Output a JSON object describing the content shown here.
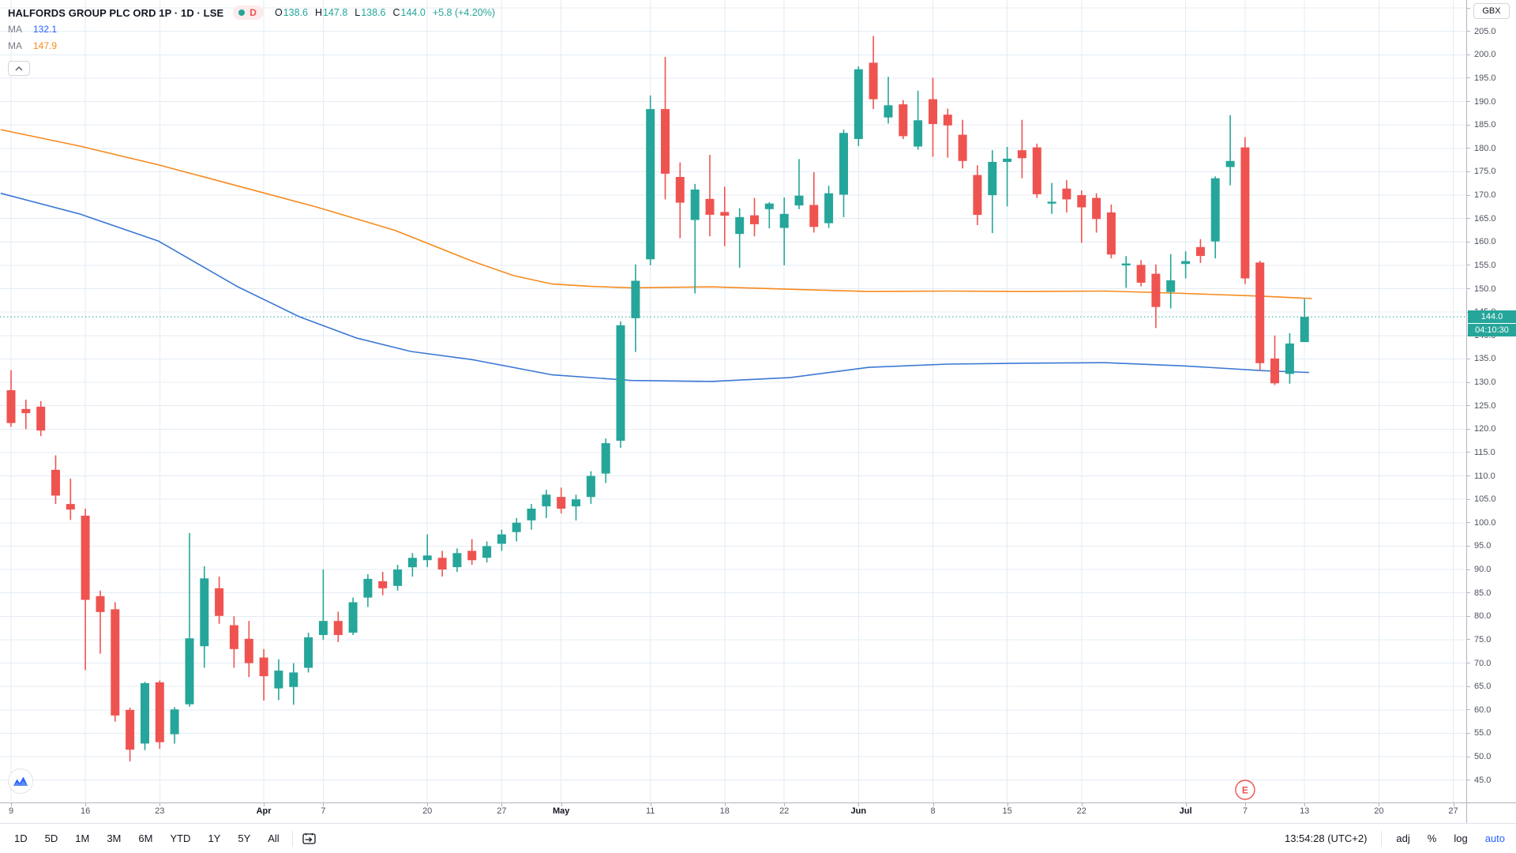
{
  "header": {
    "title": "HALFORDS GROUP PLC ORD 1P · 1D · LSE",
    "interval_badge": "D",
    "ohlc": {
      "o_label": "O",
      "o": "138.6",
      "h_label": "H",
      "h": "147.8",
      "l_label": "L",
      "l": "138.6",
      "c_label": "C",
      "c": "144.0",
      "change": "+5.8 (+4.20%)"
    },
    "ma_rows": [
      {
        "label": "MA",
        "value": "132.1",
        "color": "#2962ff"
      },
      {
        "label": "MA",
        "value": "147.9",
        "color": "#f7891d"
      }
    ]
  },
  "price_axis": {
    "currency_button": "GBX",
    "min": 45,
    "max": 210,
    "step": 5,
    "current_price": "144.0",
    "countdown": "04:10:30"
  },
  "toolbar": {
    "ranges": [
      "1D",
      "5D",
      "1M",
      "3M",
      "6M",
      "YTD",
      "1Y",
      "5Y",
      "All"
    ],
    "clock": "13:54:28 (UTC+2)",
    "adj": "adj",
    "percent": "%",
    "log": "log",
    "auto": "auto"
  },
  "chart_data": {
    "type": "candlestick",
    "symbol": "HALFORDS GROUP PLC ORD 1P",
    "interval": "1D",
    "exchange": "LSE",
    "colors": {
      "up": "#26a69a",
      "down": "#ef5350",
      "grid": "#e4ecf4",
      "price_line": "#26a69a"
    },
    "price_axis": {
      "min": 45,
      "max": 210,
      "step": 5,
      "current_price": 144.0
    },
    "time_labels": [
      {
        "t": "9",
        "i": 0,
        "m": false
      },
      {
        "t": "16",
        "i": 5,
        "m": false
      },
      {
        "t": "23",
        "i": 10,
        "m": false
      },
      {
        "t": "Apr",
        "i": 17,
        "m": true
      },
      {
        "t": "7",
        "i": 21,
        "m": false
      },
      {
        "t": "20",
        "i": 28,
        "m": false
      },
      {
        "t": "27",
        "i": 33,
        "m": false
      },
      {
        "t": "May",
        "i": 37,
        "m": true
      },
      {
        "t": "11",
        "i": 43,
        "m": false
      },
      {
        "t": "18",
        "i": 48,
        "m": false
      },
      {
        "t": "22",
        "i": 52,
        "m": false
      },
      {
        "t": "Jun",
        "i": 57,
        "m": true
      },
      {
        "t": "8",
        "i": 62,
        "m": false
      },
      {
        "t": "15",
        "i": 67,
        "m": false
      },
      {
        "t": "22",
        "i": 72,
        "m": false
      },
      {
        "t": "Jul",
        "i": 79,
        "m": true
      },
      {
        "t": "7",
        "i": 83,
        "m": false
      },
      {
        "t": "13",
        "i": 87,
        "m": false
      },
      {
        "t": "20",
        "i": 92,
        "m": false
      },
      {
        "t": "27",
        "i": 97,
        "m": false
      }
    ],
    "columns": [
      "date",
      "open",
      "high",
      "low",
      "close"
    ],
    "candles": [
      [
        "Mar 9",
        128.3,
        132.6,
        120.5,
        121.3
      ],
      [
        "Mar 10",
        124.3,
        126.3,
        120.0,
        123.4
      ],
      [
        "Mar 11",
        124.8,
        126.0,
        118.5,
        119.7
      ],
      [
        "Mar 12",
        111.3,
        114.4,
        104.0,
        105.8
      ],
      [
        "Mar 13",
        104.0,
        109.4,
        100.6,
        102.8
      ],
      [
        "Mar 16",
        101.5,
        103.0,
        68.5,
        83.5
      ],
      [
        "Mar 17",
        84.3,
        85.5,
        72.0,
        80.9
      ],
      [
        "Mar 18",
        81.5,
        83.0,
        57.5,
        58.8
      ],
      [
        "Mar 19",
        60.0,
        60.5,
        49.0,
        51.5
      ],
      [
        "Mar 20",
        52.8,
        66.0,
        51.4,
        65.7
      ],
      [
        "Mar 23",
        65.9,
        66.3,
        51.7,
        53.1
      ],
      [
        "Mar 24",
        54.8,
        60.6,
        52.8,
        60.1
      ],
      [
        "Mar 25",
        61.2,
        97.8,
        60.7,
        75.3
      ],
      [
        "Mar 26",
        73.6,
        90.7,
        69.0,
        88.1
      ],
      [
        "Mar 27",
        86.0,
        88.5,
        78.4,
        80.1
      ],
      [
        "Mar 30",
        78.1,
        80.0,
        69.0,
        73.0
      ],
      [
        "Mar 31",
        75.2,
        79.0,
        67.0,
        70.0
      ],
      [
        "Apr 1",
        71.2,
        73.0,
        62.0,
        67.2
      ],
      [
        "Apr 2",
        64.6,
        70.8,
        62.1,
        68.4
      ],
      [
        "Apr 3",
        64.9,
        70.0,
        61.1,
        68.0
      ],
      [
        "Apr 6",
        69.0,
        76.5,
        68.0,
        75.5
      ],
      [
        "Apr 7",
        76.0,
        90.0,
        75.0,
        79.0
      ],
      [
        "Apr 8",
        79.0,
        81.0,
        74.5,
        76.0
      ],
      [
        "Apr 9",
        76.5,
        84.0,
        76.0,
        83.0
      ],
      [
        "Apr 14",
        84.0,
        89.0,
        82.0,
        88.0
      ],
      [
        "Apr 15",
        87.5,
        89.5,
        84.5,
        86.0
      ],
      [
        "Apr 16",
        86.5,
        91.0,
        85.5,
        90.0
      ],
      [
        "Apr 17",
        90.5,
        93.5,
        88.5,
        92.5
      ],
      [
        "Apr 20",
        92.0,
        97.5,
        90.5,
        93.0
      ],
      [
        "Apr 21",
        92.5,
        94.0,
        88.5,
        90.0
      ],
      [
        "Apr 22",
        90.5,
        94.5,
        89.5,
        93.5
      ],
      [
        "Apr 23",
        94.0,
        96.5,
        91.0,
        92.0
      ],
      [
        "Apr 24",
        92.5,
        96.0,
        91.5,
        95.0
      ],
      [
        "Apr 27",
        95.5,
        98.5,
        94.0,
        97.5
      ],
      [
        "Apr 28",
        98.0,
        101.0,
        96.0,
        100.0
      ],
      [
        "Apr 29",
        100.5,
        104.0,
        98.5,
        103.0
      ],
      [
        "Apr 30",
        103.5,
        107.0,
        101.0,
        106.0
      ],
      [
        "May 1",
        105.5,
        107.5,
        102.0,
        103.0
      ],
      [
        "May 4",
        103.5,
        106.0,
        100.5,
        105.0
      ],
      [
        "May 5",
        105.5,
        111.0,
        104.0,
        110.0
      ],
      [
        "May 6",
        110.5,
        118.0,
        108.5,
        117.0
      ],
      [
        "May 7",
        117.5,
        143.0,
        116.0,
        142.2
      ],
      [
        "May 8",
        143.7,
        155.2,
        136.5,
        151.7
      ],
      [
        "May 11",
        156.3,
        191.3,
        155.0,
        188.4
      ],
      [
        "May 12",
        188.4,
        199.5,
        169.1,
        174.6
      ],
      [
        "May 13",
        173.9,
        177.0,
        160.8,
        168.4
      ],
      [
        "May 14",
        164.7,
        172.4,
        149.0,
        171.2
      ],
      [
        "May 15",
        169.2,
        178.6,
        161.2,
        165.8
      ],
      [
        "May 18",
        166.4,
        171.8,
        159.1,
        165.6
      ],
      [
        "May 19",
        161.7,
        167.2,
        154.5,
        165.3
      ],
      [
        "May 20",
        165.7,
        169.4,
        161.2,
        163.8
      ],
      [
        "May 21",
        167.0,
        168.5,
        162.9,
        168.2
      ],
      [
        "May 22",
        163.0,
        169.5,
        155.0,
        166.0
      ],
      [
        "May 26",
        167.8,
        177.7,
        167.0,
        169.9
      ],
      [
        "May 27",
        167.9,
        174.9,
        162.0,
        163.2
      ],
      [
        "May 28",
        164.0,
        172.0,
        163.0,
        170.4
      ],
      [
        "May 29",
        170.1,
        184.0,
        165.3,
        183.3
      ],
      [
        "Jun 1",
        182.0,
        197.5,
        180.5,
        196.9
      ],
      [
        "Jun 2",
        198.3,
        204.0,
        188.4,
        190.5
      ],
      [
        "Jun 3",
        186.6,
        195.3,
        185.3,
        189.2
      ],
      [
        "Jun 4",
        189.4,
        190.3,
        182.0,
        182.6
      ],
      [
        "Jun 5",
        180.4,
        192.3,
        179.7,
        186.0
      ],
      [
        "Jun 8",
        190.5,
        195.1,
        178.2,
        185.2
      ],
      [
        "Jun 9",
        187.2,
        188.5,
        178.0,
        184.9
      ],
      [
        "Jun 10",
        182.9,
        186.1,
        175.7,
        177.3
      ],
      [
        "Jun 11",
        174.3,
        176.4,
        163.6,
        165.8
      ],
      [
        "Jun 12",
        170.0,
        179.6,
        161.9,
        177.1
      ],
      [
        "Jun 15",
        177.1,
        180.3,
        167.6,
        177.8
      ],
      [
        "Jun 16",
        179.6,
        186.1,
        173.6,
        177.9
      ],
      [
        "Jun 17",
        180.2,
        181.0,
        169.4,
        170.2
      ],
      [
        "Jun 18",
        168.2,
        172.6,
        166.0,
        168.6
      ],
      [
        "Jun 19",
        171.4,
        173.2,
        166.3,
        169.1
      ],
      [
        "Jun 22",
        170.0,
        171.0,
        159.8,
        167.4
      ],
      [
        "Jun 23",
        169.4,
        170.4,
        162.0,
        164.9
      ],
      [
        "Jun 24",
        166.3,
        168.0,
        156.5,
        157.3
      ],
      [
        "Jun 25",
        155.0,
        157.0,
        150.2,
        155.4
      ],
      [
        "Jun 26",
        155.1,
        156.1,
        150.5,
        151.3
      ],
      [
        "Jun 29",
        153.2,
        155.2,
        141.6,
        146.1
      ],
      [
        "Jun 30",
        149.3,
        157.4,
        145.8,
        151.8
      ],
      [
        "Jul 1",
        155.3,
        158.0,
        152.2,
        155.9
      ],
      [
        "Jul 2",
        158.9,
        160.6,
        155.5,
        157.0
      ],
      [
        "Jul 3",
        160.1,
        174.0,
        156.5,
        173.6
      ],
      [
        "Jul 6",
        176.0,
        187.1,
        172.1,
        177.3
      ],
      [
        "Jul 7",
        180.2,
        182.4,
        151.0,
        152.2
      ],
      [
        "Jul 8",
        155.6,
        156.0,
        132.5,
        134.1
      ],
      [
        "Jul 9",
        135.1,
        140.0,
        129.4,
        129.8
      ],
      [
        "Jul 10",
        131.8,
        140.5,
        129.7,
        138.3
      ],
      [
        "Jul 13",
        138.6,
        147.8,
        138.6,
        144.0
      ]
    ],
    "ma_series": [
      {
        "name": "MA",
        "value": 147.9,
        "color": "#f7891d",
        "points": [
          [
            -0.7,
            184
          ],
          [
            4.6,
            180.5
          ],
          [
            9.9,
            176.5
          ],
          [
            15.2,
            172
          ],
          [
            20.5,
            167.5
          ],
          [
            25.8,
            162.5
          ],
          [
            31.1,
            155.8
          ],
          [
            33.8,
            152.8
          ],
          [
            36.4,
            151
          ],
          [
            39,
            150.5
          ],
          [
            41.7,
            150.2
          ],
          [
            47.1,
            150.4
          ],
          [
            52.4,
            149.9
          ],
          [
            57.7,
            149.4
          ],
          [
            63,
            149.5
          ],
          [
            68.3,
            149.4
          ],
          [
            73.6,
            149.5
          ],
          [
            78.9,
            149
          ],
          [
            84.2,
            148.4
          ],
          [
            87.5,
            147.9
          ]
        ]
      },
      {
        "name": "MA",
        "value": 132.1,
        "color": "#3b78d4",
        "points": [
          [
            -0.7,
            170.4
          ],
          [
            4.6,
            166
          ],
          [
            9.9,
            160.2
          ],
          [
            15.2,
            150.5
          ],
          [
            19.4,
            144
          ],
          [
            23.2,
            139.5
          ],
          [
            26.9,
            136.6
          ],
          [
            31.1,
            134.8
          ],
          [
            36.4,
            131.6
          ],
          [
            41.7,
            130.4
          ],
          [
            47.1,
            130.2
          ],
          [
            52.4,
            131
          ],
          [
            57.7,
            133.2
          ],
          [
            63,
            133.9
          ],
          [
            68.3,
            134.1
          ],
          [
            73.6,
            134.2
          ],
          [
            78.9,
            133.5
          ],
          [
            84.2,
            132.5
          ],
          [
            87.3,
            132.1
          ]
        ]
      }
    ],
    "events": [
      {
        "type": "earnings",
        "label": "E",
        "index": 83
      }
    ]
  }
}
